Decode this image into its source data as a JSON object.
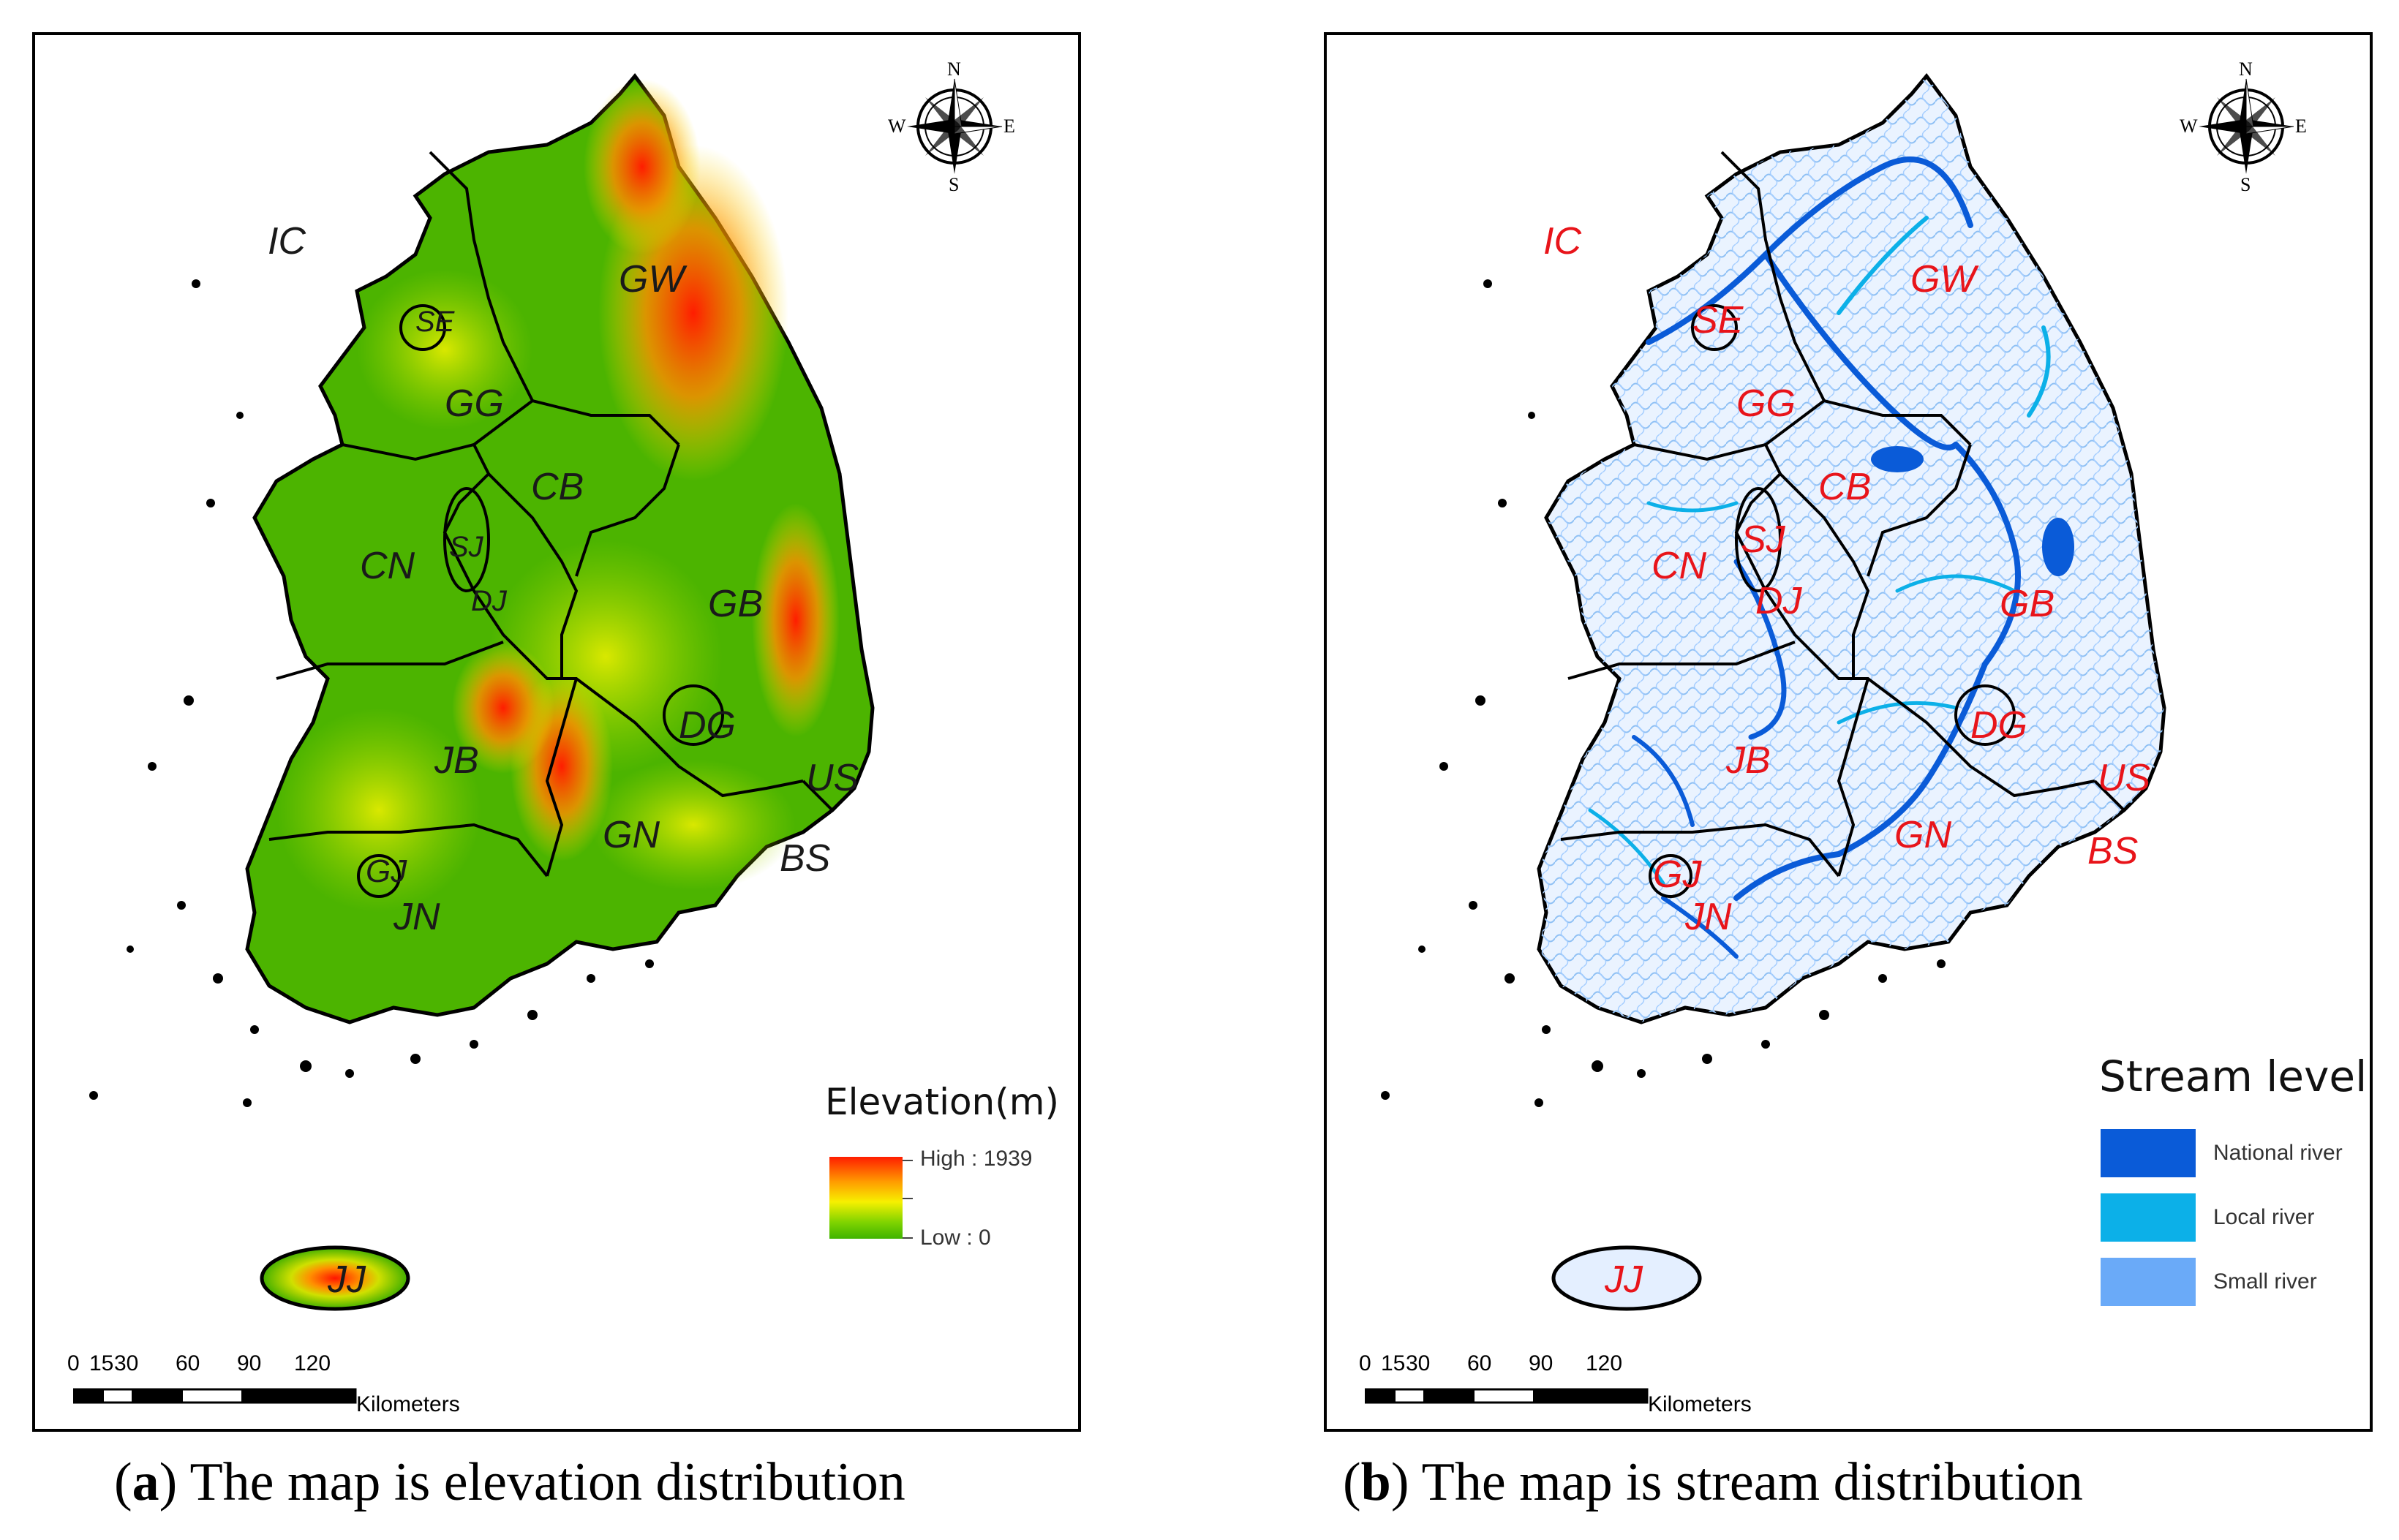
{
  "panel_a": {
    "regions": [
      "IC",
      "GW",
      "GG",
      "CB",
      "CN",
      "SJ",
      "DJ",
      "GB",
      "JB",
      "DG",
      "US",
      "GN",
      "BS",
      "GJ",
      "JN",
      "JJ",
      "SE"
    ],
    "legend": {
      "title": "Elevation(m)",
      "high_label": "High : 1939",
      "low_label": "Low : 0",
      "high_value": 1939,
      "low_value": 0,
      "gradient_colors": [
        "#ff1d00",
        "#ff9a00",
        "#f7f000",
        "#7fd300",
        "#3fb400"
      ]
    },
    "caption": {
      "letter": "a",
      "text": ") The map is elevation distribution",
      "open": "("
    }
  },
  "panel_b": {
    "regions": [
      "IC",
      "GW",
      "GG",
      "CB",
      "CN",
      "SJ",
      "DJ",
      "GB",
      "JB",
      "DG",
      "US",
      "GN",
      "BS",
      "GJ",
      "JN",
      "JJ",
      "SE"
    ],
    "legend": {
      "title": "Stream level",
      "items": [
        {
          "label": "National river",
          "color": "#0a5bd8"
        },
        {
          "label": "Local river",
          "color": "#0cb0e8"
        },
        {
          "label": "Small river",
          "color": "#6aaaf8"
        }
      ]
    },
    "caption": {
      "letter": "b",
      "text": ") The map is stream distribution",
      "open": "("
    }
  },
  "scalebar": {
    "ticks": [
      "0",
      "15",
      "30",
      "60",
      "90",
      "120"
    ],
    "units": "Kilometers"
  },
  "compass": {
    "n": "N",
    "s": "S",
    "e": "E",
    "w": "W"
  }
}
